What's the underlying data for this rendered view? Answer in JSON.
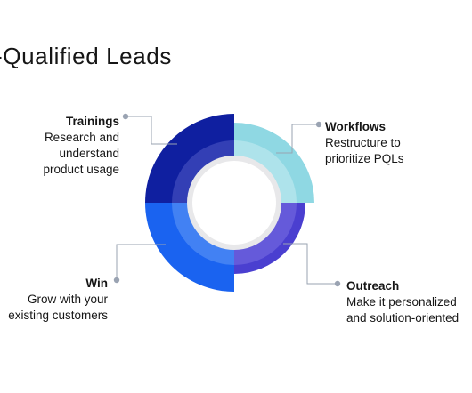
{
  "title": "-Qualified Leads",
  "segments": {
    "trainings": {
      "head": "Trainings",
      "body": "Research and\nunderstand\nproduct usage",
      "color": "#0f1fa0",
      "inner_color": "#3a45b8"
    },
    "workflows": {
      "head": "Workflows",
      "body": "Restructure to\nprioritize PQLs",
      "color": "#8fd8e3",
      "inner_color": "#b4e5ec"
    },
    "outreach": {
      "head": "Outreach",
      "body": "Make it personalized\nand solution-oriented",
      "color": "#4a3fd0",
      "inner_color": "#6a5fdc"
    },
    "win": {
      "head": "Win",
      "body": "Grow with your\nexisting customers",
      "color": "#1a63f0",
      "inner_color": "#4a86f3"
    }
  },
  "colors": {
    "connector": "#9aa3b2",
    "center_ring": "#e8e8ea"
  }
}
